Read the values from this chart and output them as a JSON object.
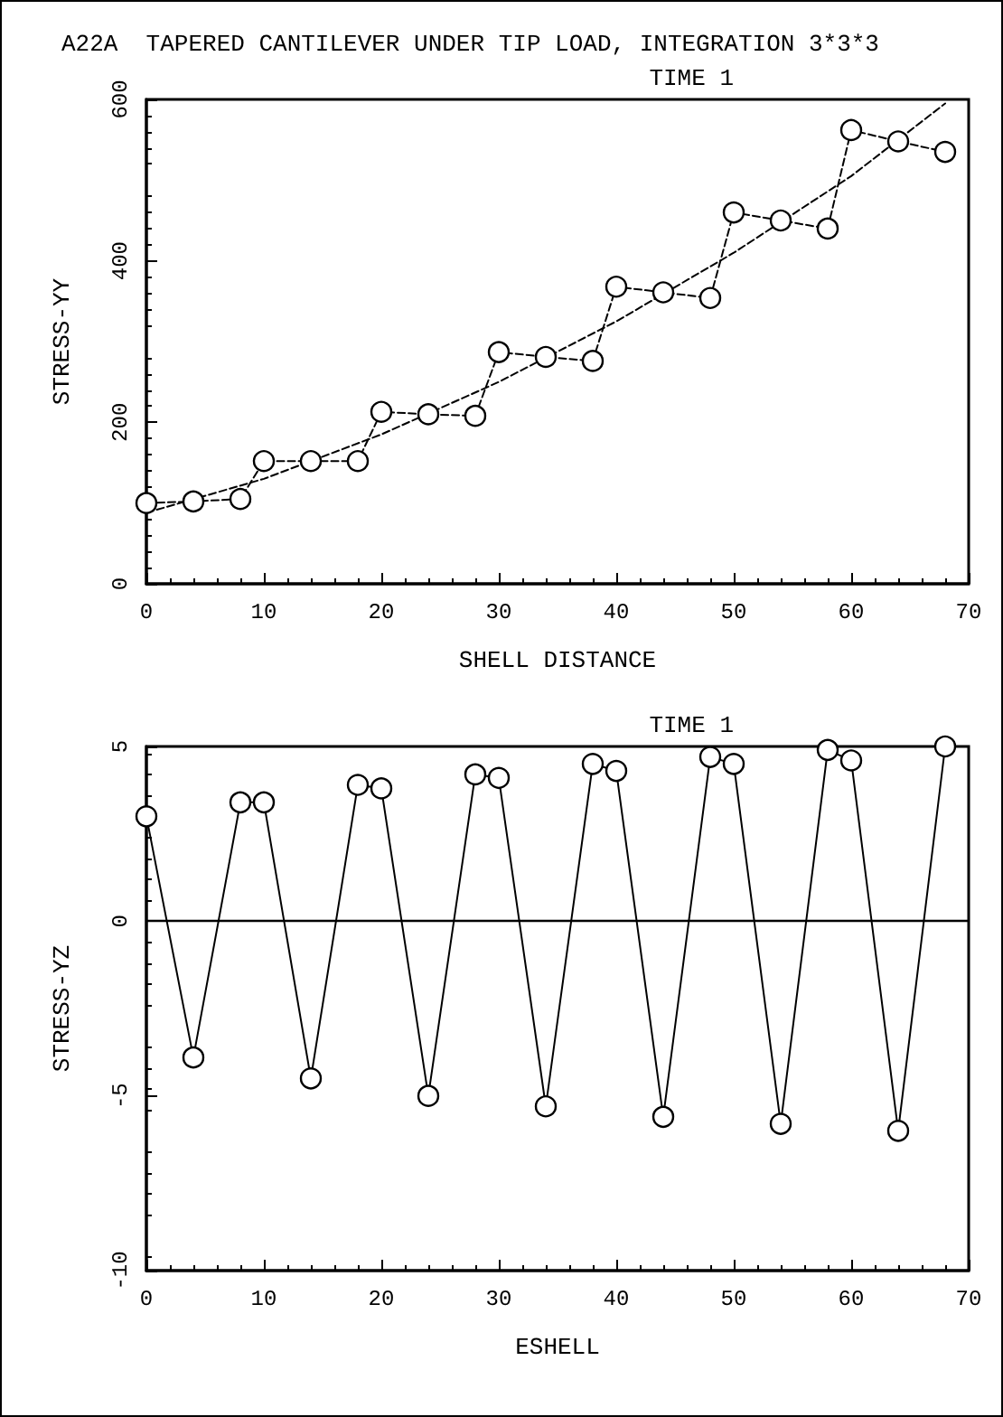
{
  "chart_data": [
    {
      "type": "line",
      "title": "A22A  TAPERED CANTILEVER UNDER TIP LOAD, INTEGRATION 3*3*3",
      "annotations": [
        "TIME 1"
      ],
      "xlabel": "SHELL DISTANCE",
      "ylabel": "STRESS-YY",
      "xlim": [
        0,
        70
      ],
      "xticks": [
        0,
        10,
        20,
        30,
        40,
        50,
        60,
        70
      ],
      "ylim": [
        0,
        600
      ],
      "yticks": [
        0,
        200,
        400,
        600
      ],
      "grid": false,
      "series": [
        {
          "color": "#000000",
          "marker": "circle",
          "line_style": "dashed",
          "x": [
            0,
            4,
            8,
            10,
            14,
            18,
            20,
            24,
            28,
            30,
            34,
            38,
            40,
            44,
            48,
            50,
            54,
            58,
            60,
            64,
            68
          ],
          "values": [
            100,
            102,
            105,
            152,
            152,
            152,
            213,
            210,
            208,
            287,
            281,
            276,
            368,
            361,
            354,
            460,
            450,
            440,
            562,
            548,
            535
          ]
        },
        {
          "color": "#000000",
          "marker": "none",
          "line_style": "dashed",
          "x": [
            0,
            10,
            20,
            30,
            40,
            50,
            60,
            68
          ],
          "values": [
            88,
            130,
            185,
            250,
            325,
            410,
            505,
            595
          ]
        }
      ]
    },
    {
      "type": "line",
      "annotations": [
        "TIME 1"
      ],
      "xlabel": "ESHELL",
      "ylabel": "STRESS-YZ",
      "xlim": [
        0,
        70
      ],
      "xticks": [
        0,
        10,
        20,
        30,
        40,
        50,
        60,
        70
      ],
      "ylim": [
        -10,
        5
      ],
      "yticks": [
        -10,
        -5,
        0,
        5
      ],
      "grid": false,
      "ref_lines": [
        {
          "axis": "y",
          "value": 0,
          "color": "#000000"
        }
      ],
      "series": [
        {
          "color": "#000000",
          "marker": "circle",
          "line_style": "solid",
          "x": [
            0,
            4,
            8,
            10,
            14,
            18,
            20,
            24,
            28,
            30,
            34,
            38,
            40,
            44,
            48,
            50,
            54,
            58,
            60,
            64,
            68
          ],
          "values": [
            3.0,
            -3.9,
            3.4,
            3.4,
            -4.5,
            3.9,
            3.8,
            -5.0,
            4.2,
            4.1,
            -5.3,
            4.5,
            4.3,
            -5.6,
            4.7,
            4.5,
            -5.8,
            4.9,
            4.6,
            -6.0,
            5.0
          ]
        }
      ]
    }
  ]
}
